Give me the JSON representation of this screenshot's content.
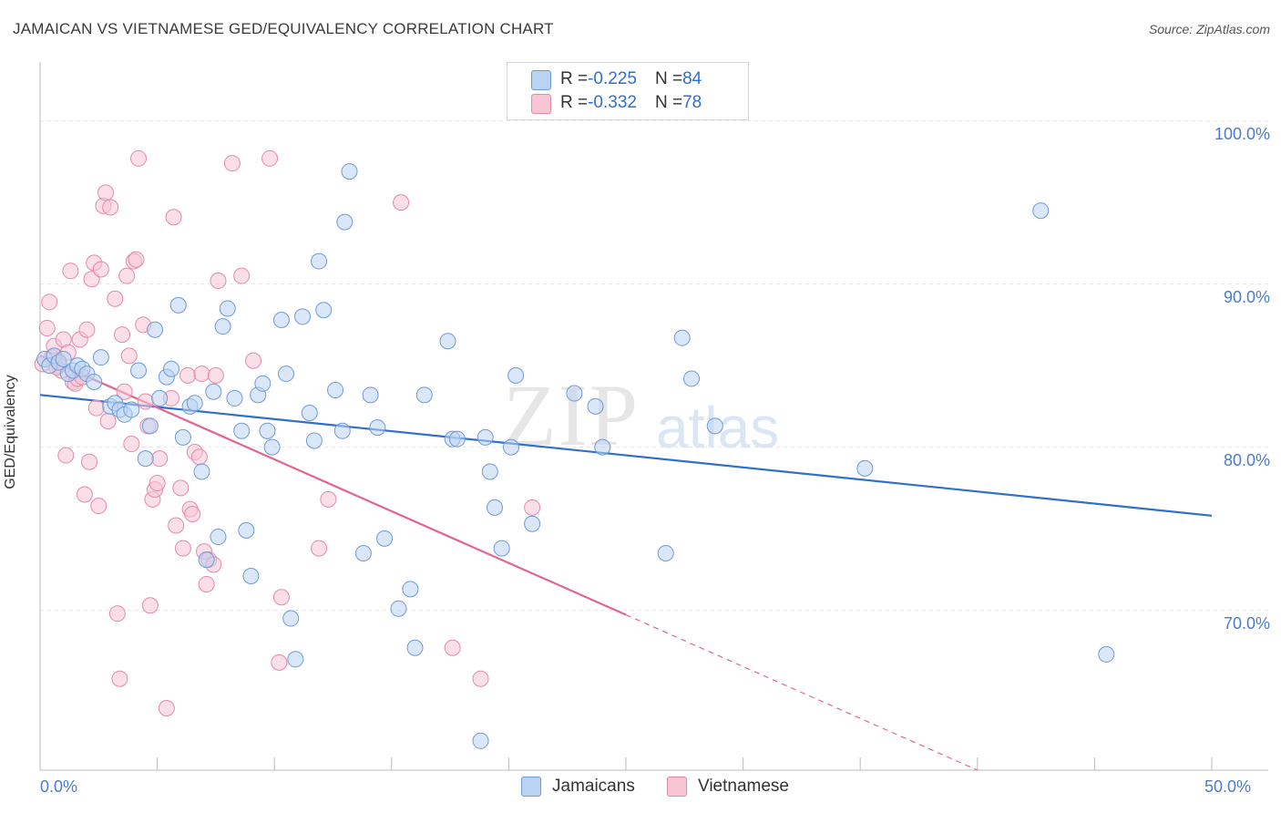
{
  "header": {
    "title": "JAMAICAN VS VIETNAMESE GED/EQUIVALENCY CORRELATION CHART",
    "source": "Source: ZipAtlas.com"
  },
  "watermark": {
    "zip": "ZIP",
    "atlas": "atlas"
  },
  "legend": {
    "jamaicans": {
      "r_label": "R = ",
      "r_value": "-0.225",
      "n_label": "N = ",
      "n_value": "84"
    },
    "vietnamese": {
      "r_label": "R = ",
      "r_value": "-0.332",
      "n_label": "N = ",
      "n_value": "78"
    }
  },
  "colors": {
    "jamaicans_fill": "#b9d3f2",
    "jamaicans_stroke": "#6f9ad6",
    "jamaicans_line": "#2f6fcf",
    "vietnamese_fill": "#f8c5d5",
    "vietnamese_stroke": "#e58aa8",
    "vietnamese_line": "#e0668f",
    "grid": "#e5e5e5",
    "tick_label": "#4a7cc7"
  },
  "chart_data": {
    "type": "scatter",
    "title": "JAMAICAN VS VIETNAMESE GED/EQUIVALENCY CORRELATION CHART",
    "xlabel": "",
    "ylabel": "GED/Equivalency",
    "xlim": [
      0,
      50
    ],
    "ylim": [
      60.2,
      103.5
    ],
    "x_tick_labels": [
      "0.0%",
      "50.0%"
    ],
    "y_ticks": [
      70,
      80,
      90,
      100
    ],
    "y_tick_labels": [
      "70.0%",
      "80.0%",
      "90.0%",
      "100.0%"
    ],
    "legend_position": "top-center",
    "series": [
      {
        "name": "Jamaicans",
        "r": -0.225,
        "n": 84,
        "trend": {
          "x": [
            0,
            50
          ],
          "y": [
            83.2,
            75.8
          ],
          "solid_to": 50
        },
        "points": [
          [
            0.2,
            85.4
          ],
          [
            0.4,
            85.0
          ],
          [
            0.6,
            85.6
          ],
          [
            0.8,
            85.2
          ],
          [
            1.0,
            85.4
          ],
          [
            1.2,
            84.5
          ],
          [
            1.4,
            84.7
          ],
          [
            1.6,
            85.0
          ],
          [
            1.8,
            84.8
          ],
          [
            2.0,
            84.5
          ],
          [
            2.3,
            84.0
          ],
          [
            2.6,
            85.5
          ],
          [
            3.0,
            82.5
          ],
          [
            3.2,
            82.7
          ],
          [
            3.4,
            82.3
          ],
          [
            3.6,
            82.0
          ],
          [
            3.9,
            82.3
          ],
          [
            4.2,
            84.7
          ],
          [
            4.5,
            79.3
          ],
          [
            4.7,
            81.3
          ],
          [
            4.9,
            87.2
          ],
          [
            5.1,
            83.0
          ],
          [
            5.4,
            84.3
          ],
          [
            5.6,
            84.8
          ],
          [
            5.9,
            88.7
          ],
          [
            6.1,
            80.6
          ],
          [
            6.4,
            82.5
          ],
          [
            6.6,
            82.7
          ],
          [
            6.9,
            78.5
          ],
          [
            7.1,
            73.1
          ],
          [
            7.4,
            83.4
          ],
          [
            7.6,
            74.5
          ],
          [
            7.8,
            87.4
          ],
          [
            8.0,
            88.5
          ],
          [
            8.3,
            83.0
          ],
          [
            8.6,
            81.0
          ],
          [
            8.8,
            74.9
          ],
          [
            9.0,
            72.1
          ],
          [
            9.3,
            83.2
          ],
          [
            9.5,
            83.9
          ],
          [
            9.7,
            81.0
          ],
          [
            9.9,
            80.0
          ],
          [
            10.3,
            87.8
          ],
          [
            10.5,
            84.5
          ],
          [
            10.7,
            69.5
          ],
          [
            10.9,
            67.0
          ],
          [
            11.2,
            88.0
          ],
          [
            11.5,
            82.1
          ],
          [
            11.7,
            80.4
          ],
          [
            11.9,
            91.4
          ],
          [
            12.1,
            88.4
          ],
          [
            12.6,
            83.5
          ],
          [
            12.9,
            81.0
          ],
          [
            13.0,
            93.8
          ],
          [
            13.2,
            96.9
          ],
          [
            13.8,
            73.5
          ],
          [
            14.1,
            83.2
          ],
          [
            14.4,
            81.2
          ],
          [
            14.7,
            74.4
          ],
          [
            15.3,
            70.1
          ],
          [
            15.8,
            71.3
          ],
          [
            16.0,
            67.7
          ],
          [
            16.4,
            83.2
          ],
          [
            17.4,
            86.5
          ],
          [
            17.6,
            80.5
          ],
          [
            17.8,
            80.5
          ],
          [
            18.8,
            62.0
          ],
          [
            19.0,
            80.6
          ],
          [
            19.2,
            78.5
          ],
          [
            19.4,
            76.3
          ],
          [
            19.7,
            73.8
          ],
          [
            20.1,
            80.0
          ],
          [
            20.3,
            84.4
          ],
          [
            21.0,
            75.3
          ],
          [
            22.8,
            83.3
          ],
          [
            23.7,
            82.5
          ],
          [
            24.0,
            80.0
          ],
          [
            26.7,
            73.5
          ],
          [
            27.4,
            86.7
          ],
          [
            27.8,
            84.2
          ],
          [
            28.8,
            81.3
          ],
          [
            35.2,
            78.7
          ],
          [
            42.7,
            94.5
          ],
          [
            45.5,
            67.3
          ]
        ]
      },
      {
        "name": "Vietnamese",
        "r": -0.332,
        "n": 78,
        "trend": {
          "x": [
            0,
            40
          ],
          "y": [
            85.6,
            60.2
          ],
          "solid_to": 25
        },
        "points": [
          [
            0.3,
            87.3
          ],
          [
            0.4,
            88.9
          ],
          [
            0.5,
            85.5
          ],
          [
            0.6,
            86.2
          ],
          [
            0.8,
            85.0
          ],
          [
            0.9,
            84.7
          ],
          [
            1.0,
            86.6
          ],
          [
            1.1,
            79.5
          ],
          [
            1.2,
            85.8
          ],
          [
            1.3,
            90.8
          ],
          [
            1.4,
            84.0
          ],
          [
            1.5,
            83.9
          ],
          [
            1.6,
            84.2
          ],
          [
            1.7,
            86.6
          ],
          [
            1.8,
            84.3
          ],
          [
            1.9,
            77.1
          ],
          [
            2.0,
            87.2
          ],
          [
            2.1,
            79.1
          ],
          [
            2.2,
            90.3
          ],
          [
            2.3,
            91.3
          ],
          [
            2.4,
            82.4
          ],
          [
            2.5,
            76.4
          ],
          [
            2.6,
            90.9
          ],
          [
            2.7,
            94.8
          ],
          [
            2.8,
            95.6
          ],
          [
            2.9,
            81.6
          ],
          [
            3.0,
            94.7
          ],
          [
            3.2,
            89.1
          ],
          [
            3.3,
            69.8
          ],
          [
            3.4,
            65.8
          ],
          [
            3.5,
            86.9
          ],
          [
            3.6,
            83.4
          ],
          [
            3.7,
            90.5
          ],
          [
            3.8,
            85.6
          ],
          [
            3.9,
            80.2
          ],
          [
            4.0,
            91.4
          ],
          [
            4.1,
            91.5
          ],
          [
            4.2,
            97.7
          ],
          [
            4.4,
            87.5
          ],
          [
            4.5,
            82.8
          ],
          [
            4.6,
            81.3
          ],
          [
            4.7,
            70.3
          ],
          [
            4.8,
            76.8
          ],
          [
            4.9,
            77.4
          ],
          [
            5.0,
            77.8
          ],
          [
            5.1,
            79.3
          ],
          [
            5.4,
            64.0
          ],
          [
            5.6,
            83.0
          ],
          [
            5.7,
            94.1
          ],
          [
            5.8,
            75.2
          ],
          [
            6.0,
            77.5
          ],
          [
            6.1,
            73.8
          ],
          [
            6.3,
            84.4
          ],
          [
            6.4,
            76.2
          ],
          [
            6.5,
            75.9
          ],
          [
            6.6,
            79.7
          ],
          [
            6.8,
            79.4
          ],
          [
            6.9,
            84.5
          ],
          [
            7.0,
            73.6
          ],
          [
            7.1,
            71.6
          ],
          [
            7.2,
            73.1
          ],
          [
            7.4,
            72.8
          ],
          [
            7.5,
            84.4
          ],
          [
            7.6,
            90.2
          ],
          [
            8.2,
            97.4
          ],
          [
            8.6,
            90.5
          ],
          [
            9.1,
            85.3
          ],
          [
            9.8,
            97.7
          ],
          [
            10.2,
            66.8
          ],
          [
            10.3,
            70.8
          ],
          [
            11.9,
            73.8
          ],
          [
            12.3,
            76.8
          ],
          [
            15.4,
            95.0
          ],
          [
            17.6,
            67.7
          ],
          [
            18.8,
            65.8
          ],
          [
            21.0,
            76.3
          ],
          [
            0.1,
            85.1
          ],
          [
            0.7,
            84.9
          ]
        ]
      }
    ]
  }
}
